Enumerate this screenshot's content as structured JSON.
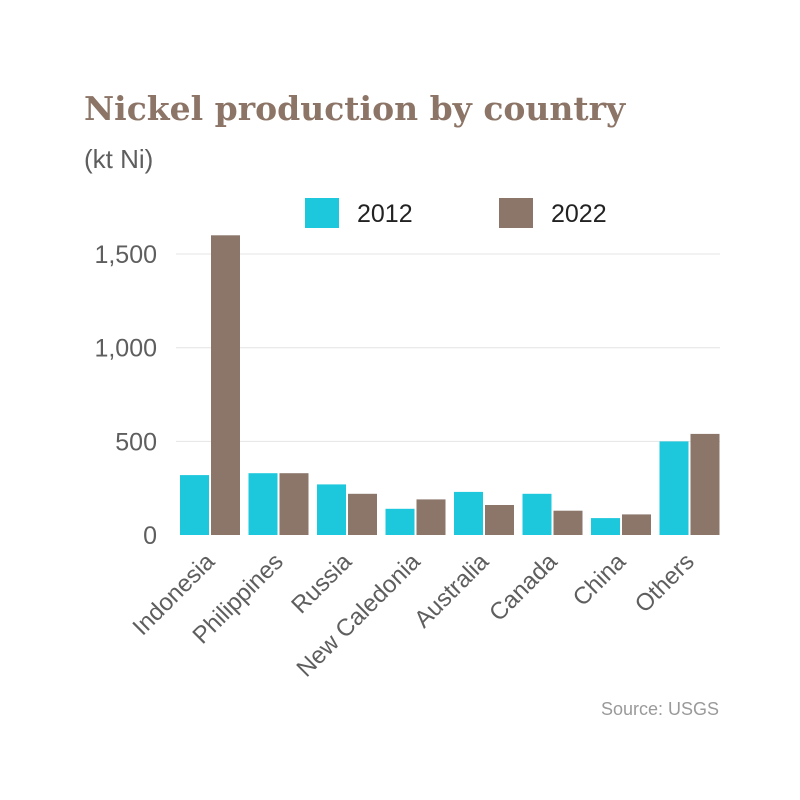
{
  "chart_data": {
    "type": "bar",
    "title": "Nickel production by country",
    "subtitle": "(kt Ni)",
    "categories": [
      "Indonesia",
      "Philippines",
      "Russia",
      "New Caledonia",
      "Australia",
      "Canada",
      "China",
      "Others"
    ],
    "series": [
      {
        "name": "2012",
        "color": "#1ec8dc",
        "values": [
          320,
          330,
          270,
          140,
          230,
          220,
          90,
          500
        ]
      },
      {
        "name": "2022",
        "color": "#8c766a",
        "values": [
          1600,
          330,
          220,
          190,
          160,
          130,
          110,
          540
        ]
      }
    ],
    "ylim": [
      0,
      1500
    ],
    "yticks": [
      0,
      500,
      1000,
      1500
    ],
    "ytick_labels": [
      "0",
      "500",
      "1,000",
      "1,500"
    ],
    "grid": true,
    "legend_position": "top",
    "source": "Source: USGS"
  }
}
